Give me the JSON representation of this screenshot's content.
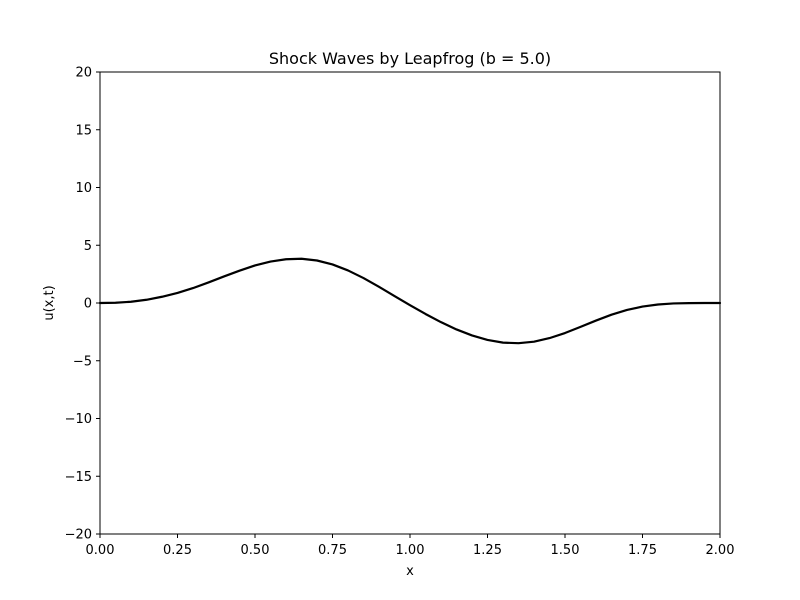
{
  "chart_data": {
    "type": "line",
    "title": "Shock Waves by Leapfrog (b = 5.0)",
    "xlabel": "x",
    "ylabel": "u(x,t)",
    "xlim": [
      0.0,
      2.0
    ],
    "ylim": [
      -20,
      20
    ],
    "x_ticks": [
      0.0,
      0.25,
      0.5,
      0.75,
      1.0,
      1.25,
      1.5,
      1.75,
      2.0
    ],
    "x_tick_labels": [
      "0.00",
      "0.25",
      "0.50",
      "0.75",
      "1.00",
      "1.25",
      "1.50",
      "1.75",
      "2.00"
    ],
    "y_ticks": [
      -20,
      -15,
      -10,
      -5,
      0,
      5,
      10,
      15,
      20
    ],
    "y_tick_labels": [
      "−20",
      "−15",
      "−10",
      "−5",
      "0",
      "5",
      "10",
      "15",
      "20"
    ],
    "grid": false,
    "colors": {
      "line": "#000000",
      "axes": "#000000",
      "background": "#ffffff"
    },
    "series": [
      {
        "x": [
          0.0,
          0.05,
          0.1,
          0.15,
          0.2,
          0.25,
          0.3,
          0.35,
          0.4,
          0.45,
          0.5,
          0.55,
          0.6,
          0.65,
          0.7,
          0.75,
          0.8,
          0.85,
          0.9,
          0.95,
          1.0,
          1.05,
          1.1,
          1.15,
          1.2,
          1.25,
          1.3,
          1.35,
          1.4,
          1.45,
          1.5,
          1.55,
          1.6,
          1.65,
          1.7,
          1.75,
          1.8,
          1.85,
          1.9,
          1.95,
          2.0
        ],
        "values": [
          0.0,
          0.02,
          0.11,
          0.28,
          0.54,
          0.87,
          1.29,
          1.78,
          2.3,
          2.8,
          3.25,
          3.59,
          3.79,
          3.83,
          3.68,
          3.34,
          2.82,
          2.16,
          1.4,
          0.6,
          -0.19,
          -0.95,
          -1.66,
          -2.29,
          -2.81,
          -3.2,
          -3.43,
          -3.48,
          -3.35,
          -3.04,
          -2.6,
          -2.07,
          -1.52,
          -1.01,
          -0.6,
          -0.31,
          -0.13,
          -0.04,
          -0.01,
          0.0,
          0.0
        ]
      }
    ]
  }
}
